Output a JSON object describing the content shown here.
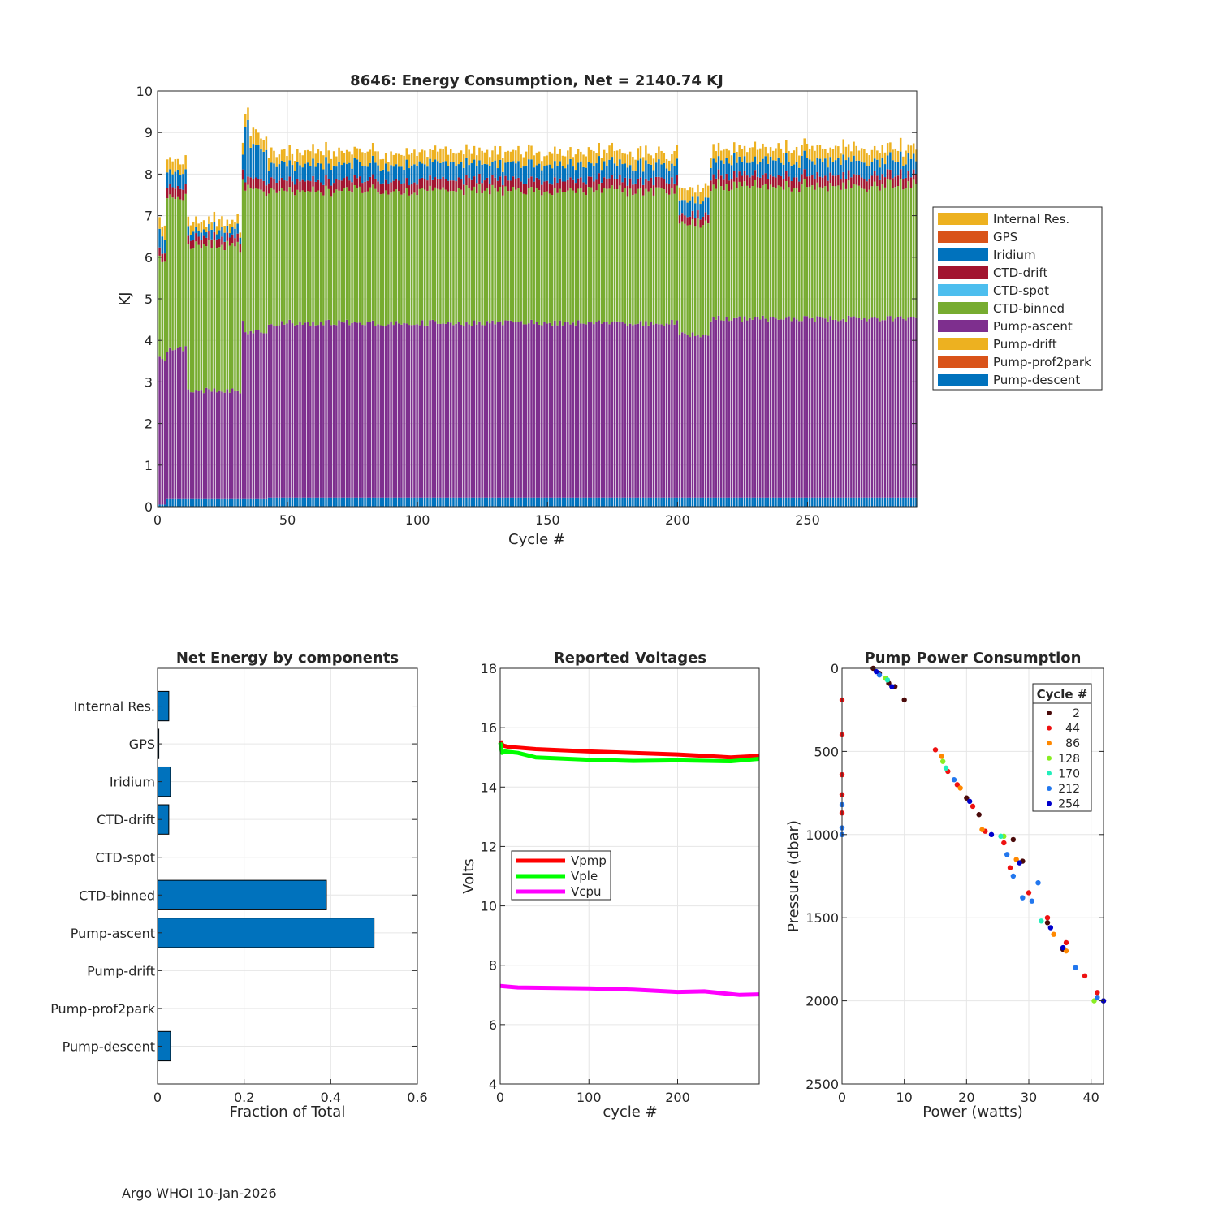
{
  "footer": "Argo WHOI 10-Jan-2026",
  "colors": {
    "Internal Res.": "#EDB120",
    "GPS": "#D95319",
    "Iridium": "#0072BD",
    "CTD-drift": "#A2142F",
    "CTD-spot": "#4DBEEE",
    "CTD-binned": "#77AC30",
    "Pump-ascent": "#7E2F8E",
    "Pump-drift": "#EDB120",
    "Pump-prof2park": "#D95319",
    "Pump-descent": "#0072BD",
    "net_bar": "#0072BD",
    "Vpmp": "#FF0000",
    "Vple": "#00FF00",
    "Vcpu": "#FF00FF"
  },
  "chart_data": [
    {
      "type": "bar",
      "stacked": true,
      "title": "8646: Energy Consumption,  Net = 2140.74 KJ",
      "xlabel": "Cycle #",
      "ylabel": "KJ",
      "xlim": [
        0,
        292
      ],
      "ylim": [
        0,
        10
      ],
      "xticks": [
        0,
        50,
        100,
        150,
        200,
        250
      ],
      "yticks": [
        0,
        1,
        2,
        3,
        4,
        5,
        6,
        7,
        8,
        9,
        10
      ],
      "grid": true,
      "legend_position": "outside-right",
      "legend": [
        "Internal Res.",
        "GPS",
        "Iridium",
        "CTD-drift",
        "CTD-spot",
        "CTD-binned",
        "Pump-ascent",
        "Pump-drift",
        "Pump-prof2park",
        "Pump-descent"
      ],
      "stack_order_bottom_to_top": [
        "Pump-descent",
        "Pump-prof2park",
        "Pump-drift",
        "Pump-ascent",
        "CTD-binned",
        "CTD-spot",
        "CTD-drift",
        "Iridium",
        "GPS",
        "Internal Res."
      ],
      "num_cycles": 292,
      "segments": [
        {
          "cycle_start": 1,
          "cycle_end": 3,
          "descent": 0.05,
          "ascent": 3.5,
          "binned": 2.4,
          "drift": 0.2,
          "iridium": 0.3,
          "internal": 0.2
        },
        {
          "cycle_start": 4,
          "cycle_end": 11,
          "descent": 0.2,
          "ascent": 3.6,
          "binned": 3.6,
          "drift": 0.25,
          "iridium": 0.3,
          "internal": 0.2
        },
        {
          "cycle_start": 12,
          "cycle_end": 32,
          "descent": 0.2,
          "ascent": 2.6,
          "binned": 3.5,
          "drift": 0.2,
          "iridium": 0.1,
          "internal": 0.12
        },
        {
          "cycle_start": 33,
          "cycle_end": 33,
          "descent": 0.2,
          "ascent": 4.3,
          "binned": 3.3,
          "drift": 0.25,
          "iridium": 0.3,
          "internal": 0.2
        },
        {
          "cycle_start": 34,
          "cycle_end": 35,
          "descent": 0.2,
          "ascent": 4.0,
          "binned": 3.5,
          "drift": 0.2,
          "iridium": 1.3,
          "internal": 0.3
        },
        {
          "cycle_start": 36,
          "cycle_end": 42,
          "descent": 0.2,
          "ascent": 4.0,
          "binned": 3.4,
          "drift": 0.25,
          "iridium": 0.7,
          "internal": 0.25
        },
        {
          "cycle_start": 43,
          "cycle_end": 200,
          "descent": 0.22,
          "ascent": 4.2,
          "binned": 3.2,
          "drift": 0.25,
          "iridium": 0.3,
          "internal": 0.22
        },
        {
          "cycle_start": 201,
          "cycle_end": 212,
          "descent": 0.22,
          "ascent": 3.9,
          "binned": 2.7,
          "drift": 0.2,
          "iridium": 0.3,
          "internal": 0.2
        },
        {
          "cycle_start": 213,
          "cycle_end": 292,
          "descent": 0.22,
          "ascent": 4.3,
          "binned": 3.2,
          "drift": 0.25,
          "iridium": 0.3,
          "internal": 0.22
        }
      ]
    },
    {
      "type": "bar",
      "orientation": "horizontal",
      "title": "Net Energy by components",
      "xlabel": "Fraction of Total",
      "xlim": [
        0,
        0.6
      ],
      "xticks": [
        0,
        0.2,
        0.4,
        0.6
      ],
      "grid": true,
      "categories": [
        "Internal Res.",
        "GPS",
        "Iridium",
        "CTD-drift",
        "CTD-spot",
        "CTD-binned",
        "Pump-ascent",
        "Pump-drift",
        "Pump-prof2park",
        "Pump-descent"
      ],
      "values": [
        0.026,
        0.003,
        0.03,
        0.026,
        0.0,
        0.39,
        0.5,
        0.0,
        0.0,
        0.03
      ]
    },
    {
      "type": "line",
      "title": "Reported Voltages",
      "xlabel": "cycle #",
      "ylabel": "Volts",
      "xlim": [
        0,
        292
      ],
      "ylim": [
        4,
        18
      ],
      "xticks": [
        0,
        100,
        200
      ],
      "yticks": [
        4,
        6,
        8,
        10,
        12,
        14,
        16,
        18
      ],
      "grid": true,
      "legend_position": "middle-left",
      "series": [
        {
          "name": "Vpmp",
          "x": [
            0,
            3,
            10,
            40,
            100,
            150,
            200,
            230,
            260,
            292
          ],
          "values": [
            15.55,
            15.4,
            15.35,
            15.28,
            15.2,
            15.15,
            15.1,
            15.05,
            15.0,
            15.05
          ]
        },
        {
          "name": "Vple",
          "x": [
            0,
            2,
            5,
            20,
            40,
            100,
            150,
            200,
            260,
            292
          ],
          "values": [
            15.5,
            15.15,
            15.2,
            15.15,
            15.0,
            14.92,
            14.88,
            14.9,
            14.87,
            14.95
          ]
        },
        {
          "name": "Vcpu",
          "x": [
            0,
            20,
            100,
            150,
            200,
            230,
            270,
            292
          ],
          "values": [
            7.3,
            7.25,
            7.22,
            7.18,
            7.1,
            7.12,
            7.0,
            7.02
          ]
        }
      ]
    },
    {
      "type": "scatter",
      "title": "Pump Power Consumption",
      "xlabel": "Power (watts)",
      "ylabel": "Pressure (dbar)",
      "xlim": [
        0,
        42
      ],
      "ylim": [
        0,
        2500
      ],
      "y_reversed": true,
      "xticks": [
        0,
        10,
        20,
        30,
        40
      ],
      "yticks": [
        0,
        500,
        1000,
        1500,
        2000,
        2500
      ],
      "grid": true,
      "legend_title": "Cycle #",
      "legend_position": "top-right",
      "legend_entries": [
        "2",
        "44",
        "86",
        "128",
        "170",
        "212",
        "254"
      ],
      "series": [
        {
          "name": "2",
          "color": "#4a0a0a",
          "points": [
            [
              5,
              0
            ],
            [
              6,
              30
            ],
            [
              7.5,
              90
            ],
            [
              8.5,
              110
            ],
            [
              10,
              190
            ],
            [
              20,
              780
            ],
            [
              22,
              880
            ],
            [
              27.5,
              1030
            ],
            [
              29,
              1160
            ],
            [
              33,
              1530
            ],
            [
              35.5,
              1690
            ],
            [
              42,
              2000
            ]
          ]
        },
        {
          "name": "44",
          "color": "#ee1111",
          "points": [
            [
              0,
              190
            ],
            [
              0,
              400
            ],
            [
              0,
              640
            ],
            [
              0,
              760
            ],
            [
              0,
              870
            ],
            [
              15,
              490
            ],
            [
              17,
              620
            ],
            [
              18.5,
              700
            ],
            [
              21,
              830
            ],
            [
              23,
              980
            ],
            [
              26,
              1050
            ],
            [
              27,
              1200
            ],
            [
              30,
              1350
            ],
            [
              33,
              1500
            ],
            [
              36,
              1650
            ],
            [
              39,
              1850
            ],
            [
              41,
              1950
            ]
          ]
        },
        {
          "name": "86",
          "color": "#ff8800",
          "points": [
            [
              16,
              530
            ],
            [
              19,
              720
            ],
            [
              22.5,
              970
            ],
            [
              28,
              1150
            ],
            [
              34,
              1600
            ],
            [
              36,
              1700
            ]
          ]
        },
        {
          "name": "128",
          "color": "#88ee22",
          "points": [
            [
              7,
              60
            ],
            [
              16.2,
              560
            ],
            [
              26,
              1010
            ],
            [
              40.5,
              2000
            ]
          ]
        },
        {
          "name": "170",
          "color": "#22eebb",
          "points": [
            [
              7.3,
              70
            ],
            [
              16.7,
              600
            ],
            [
              25.5,
              1010
            ],
            [
              32,
              1520
            ]
          ]
        },
        {
          "name": "212",
          "color": "#2277ee",
          "points": [
            [
              0,
              820
            ],
            [
              0,
              960
            ],
            [
              0,
              1000
            ],
            [
              6,
              40
            ],
            [
              18,
              670
            ],
            [
              26.5,
              1120
            ],
            [
              27.5,
              1250
            ],
            [
              29,
              1380
            ],
            [
              30.5,
              1400
            ],
            [
              31.5,
              1290
            ],
            [
              37.5,
              1800
            ],
            [
              41,
              1980
            ]
          ]
        },
        {
          "name": "254",
          "color": "#0000cc",
          "points": [
            [
              5.5,
              20
            ],
            [
              8,
              110
            ],
            [
              20.5,
              800
            ],
            [
              24,
              1000
            ],
            [
              28.5,
              1170
            ],
            [
              33.5,
              1560
            ],
            [
              35.5,
              1680
            ],
            [
              42,
              2000
            ]
          ]
        }
      ]
    }
  ]
}
